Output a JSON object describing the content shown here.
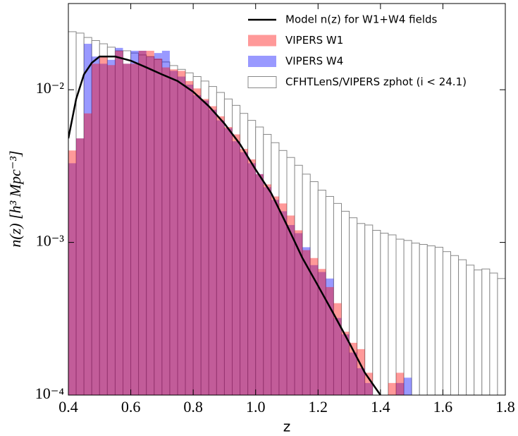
{
  "chart_data": {
    "type": "histogram",
    "x_label": "z",
    "y_label": "n(z)  [h³ Mpc⁻³]",
    "log_y": true,
    "legend": "upper right",
    "xlim": [
      0.4,
      1.8
    ],
    "ylim": [
      0.0001,
      0.0367
    ],
    "xticks": [
      0.4,
      0.6,
      0.8,
      {
        "value": 1,
        "label": "1.0"
      },
      1.2,
      1.4,
      1.6,
      1.8
    ],
    "yticks": [
      {
        "value": 0.0001,
        "label": "10⁻⁴"
      },
      {
        "value": 0.001,
        "label": "10⁻³"
      },
      {
        "value": 0.01,
        "label": "10⁻²"
      }
    ],
    "bins": [
      0.4,
      0.425,
      0.45,
      0.475,
      0.5,
      0.525,
      0.55,
      0.575,
      0.6,
      0.625,
      0.65,
      0.675,
      0.7,
      0.725,
      0.75,
      0.775,
      0.8,
      0.825,
      0.85,
      0.875,
      0.9,
      0.925,
      0.95,
      0.975,
      1.0,
      1.025,
      1.05,
      1.075,
      1.1,
      1.125,
      1.15,
      1.175,
      1.2,
      1.225,
      1.25,
      1.275,
      1.3,
      1.325,
      1.35,
      1.375,
      1.4,
      1.425,
      1.45,
      1.475,
      1.5,
      1.525,
      1.55,
      1.575,
      1.6,
      1.625,
      1.65,
      1.675,
      1.7,
      1.725,
      1.75,
      1.775,
      1.8
    ],
    "series": [
      {
        "name": "Model n(z) for W1+W4 fields",
        "type": "line",
        "color": "#000000",
        "x": [
          0.4,
          0.425,
          0.45,
          0.475,
          0.5,
          0.55,
          0.6,
          0.65,
          0.7,
          0.75,
          0.8,
          0.85,
          0.9,
          0.95,
          1.0,
          1.05,
          1.1,
          1.15,
          1.2,
          1.25,
          1.3,
          1.35,
          1.4
        ],
        "values": [
          0.0048,
          0.0087,
          0.0126,
          0.015,
          0.0165,
          0.0165,
          0.0155,
          0.014,
          0.0126,
          0.0114,
          0.0097,
          0.0078,
          0.006,
          0.0044,
          0.003,
          0.0021,
          0.0013,
          0.00079,
          0.00052,
          0.00034,
          0.00022,
          0.00014,
          0.0001
        ]
      },
      {
        "name": "VIPERS W1",
        "type": "histogram",
        "color": "rgba(255,0,0,0.4)",
        "values": [
          0.004,
          0.0048,
          0.007,
          0.0148,
          0.0165,
          0.0145,
          0.018,
          0.0148,
          0.0148,
          0.018,
          0.018,
          0.016,
          0.014,
          0.0136,
          0.0133,
          0.0114,
          0.0102,
          0.0087,
          0.0078,
          0.0067,
          0.0057,
          0.0051,
          0.0041,
          0.0035,
          0.0028,
          0.0024,
          0.002,
          0.0018,
          0.0015,
          0.0012,
          0.00089,
          0.00079,
          0.00067,
          0.00051,
          0.0004,
          0.00026,
          0.00022,
          0.0002,
          0.00014,
          null,
          null,
          0.00012,
          0.00014,
          null,
          null,
          null,
          null,
          null,
          null,
          null,
          null,
          null,
          null,
          null,
          null,
          null
        ]
      },
      {
        "name": "VIPERS W4",
        "type": "histogram",
        "color": "rgba(0,0,255,0.4)",
        "values": [
          0.0033,
          0.0048,
          0.02,
          0.0165,
          0.0148,
          0.0157,
          0.0188,
          0.0148,
          0.018,
          0.018,
          0.0165,
          0.0174,
          0.018,
          0.0133,
          0.0122,
          0.0108,
          0.0092,
          0.0085,
          0.0074,
          0.0063,
          0.0056,
          0.0046,
          0.0039,
          0.0033,
          0.0028,
          0.0023,
          0.0019,
          0.0016,
          0.0013,
          0.00115,
          0.00093,
          0.00071,
          0.00064,
          0.00058,
          0.00032,
          0.00025,
          0.00019,
          0.00015,
          0.00012,
          null,
          null,
          null,
          0.00012,
          0.00013,
          null,
          null,
          null,
          null,
          null,
          null,
          null,
          null,
          null,
          null,
          null,
          null
        ]
      },
      {
        "name": "CFHTLenS/VIPERS zphot (i < 24.1)",
        "type": "histogram",
        "color": "#ffffff",
        "values": [
          0.024,
          0.0235,
          0.022,
          0.021,
          0.02,
          0.019,
          0.018,
          0.018,
          0.0174,
          0.0169,
          0.0165,
          0.0158,
          0.0152,
          0.0144,
          0.0136,
          0.0129,
          0.0122,
          0.0114,
          0.0105,
          0.0096,
          0.0087,
          0.0079,
          0.007,
          0.0063,
          0.0057,
          0.0051,
          0.0045,
          0.004,
          0.0036,
          0.0032,
          0.0028,
          0.0025,
          0.0022,
          0.002,
          0.0018,
          0.0016,
          0.00145,
          0.00133,
          0.0013,
          0.0012,
          0.00115,
          0.00112,
          0.00105,
          0.00103,
          0.00099,
          0.00097,
          0.00095,
          0.00093,
          0.00087,
          0.00082,
          0.00077,
          0.00071,
          0.00066,
          0.00067,
          0.00063,
          0.00058
        ]
      }
    ]
  }
}
